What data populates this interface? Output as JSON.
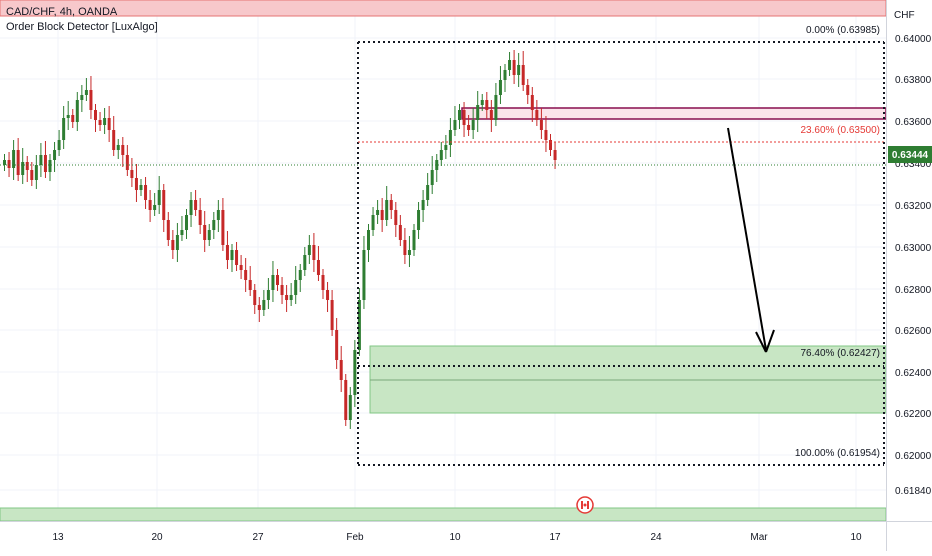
{
  "legend": {
    "title": "CAD/CHF, 4h, OANDA",
    "indicator": "Order Block Detector [LuxAlgo]"
  },
  "currency": "CHF",
  "price_axis": {
    "ticks": [
      "0.64000",
      "0.63800",
      "0.63600",
      "0.63400",
      "0.63200",
      "0.63000",
      "0.62800",
      "0.62600",
      "0.62400",
      "0.62200",
      "0.62000",
      "0.61840"
    ],
    "current_price": "0.63444",
    "current_price_color": "#2e7d32"
  },
  "time_axis": {
    "ticks": [
      "13",
      "20",
      "27",
      "Feb",
      "10",
      "17",
      "24",
      "Mar",
      "10"
    ]
  },
  "fib": {
    "levels": [
      {
        "label": "0.00% (0.63985)",
        "price": 0.63985,
        "color": "#131722"
      },
      {
        "label": "23.60% (0.63500)",
        "price": 0.635,
        "color": "#e53935"
      },
      {
        "label": "76.40% (0.62427)",
        "price": 0.62427,
        "color": "#131722"
      },
      {
        "label": "100.00% (0.61954)",
        "price": 0.61954,
        "color": "#131722"
      }
    ]
  },
  "order_blocks": {
    "bearish_color": "#f7c8cb",
    "bullish_color": "#c8e6c4",
    "supply_line_color": "#880e4f"
  },
  "colors": {
    "bull": "#2e7d32",
    "bear": "#c62828",
    "arrow": "#000000"
  }
}
